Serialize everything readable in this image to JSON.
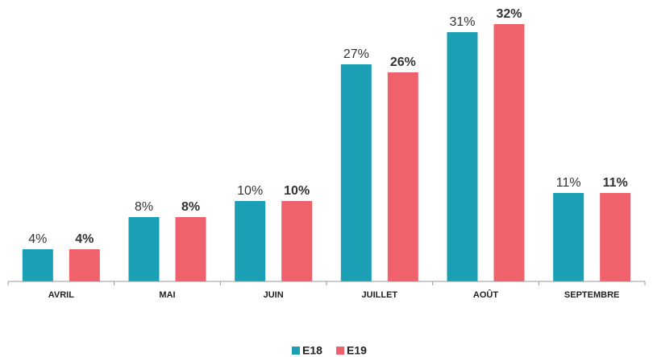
{
  "chart_data": {
    "type": "bar",
    "categories": [
      "AVRIL",
      "MAI",
      "JUIN",
      "JUILLET",
      "AOÛT",
      "SEPTEMBRE"
    ],
    "series": [
      {
        "name": "E18",
        "color": "#1a9fb5",
        "values": [
          4,
          8,
          10,
          27,
          31,
          11
        ],
        "value_labels": [
          "4%",
          "8%",
          "10%",
          "27%",
          "31%",
          "11%"
        ]
      },
      {
        "name": "E19",
        "color": "#f0626b",
        "values": [
          4,
          8,
          10,
          26,
          32,
          11
        ],
        "value_labels": [
          "4%",
          "8%",
          "10%",
          "26%",
          "32%",
          "11%"
        ]
      }
    ],
    "ylim": [
      0,
      35
    ]
  }
}
